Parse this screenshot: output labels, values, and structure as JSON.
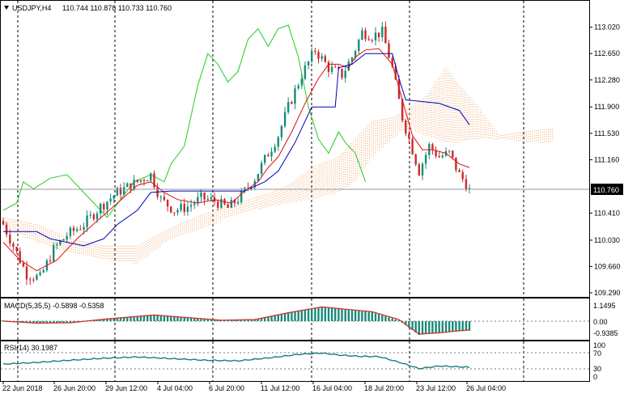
{
  "header": {
    "symbol": "USDJPY,H4",
    "ohlc": "110.744 110.878 110.733 110.760"
  },
  "current_price_label": "110.760",
  "macd": {
    "label": "MACD(5,35,5) -0.5898 -0.5358",
    "axis": [
      "1.1495",
      "0.00",
      "-0.9385"
    ]
  },
  "rsi": {
    "label": "RSI(14) 30.1987",
    "axis": [
      "100",
      "70",
      "30",
      "0"
    ]
  },
  "chart_data": {
    "type": "candlestick",
    "symbol": "USDJPY",
    "timeframe": "H4",
    "price_axis": {
      "ticks": [
        "113.020",
        "112.650",
        "112.280",
        "111.900",
        "111.530",
        "111.160",
        "110.760",
        "110.410",
        "110.030",
        "109.660",
        "109.290"
      ],
      "ylim": [
        109.29,
        113.3
      ]
    },
    "x_labels": [
      "22 Jun 2018",
      "26 Jun 20:00",
      "29 Jun 12:00",
      "4 Jul 04:00",
      "6 Jul 20:00",
      "11 Jul 12:00",
      "16 Jul 04:00",
      "18 Jul 20:00",
      "23 Jul 12:00",
      "26 Jul 04:00"
    ],
    "bar_count": 140,
    "close_path": [
      [
        0,
        110.25
      ],
      [
        3,
        109.95
      ],
      [
        7,
        109.55
      ],
      [
        11,
        109.5
      ],
      [
        15,
        109.9
      ],
      [
        19,
        110.1
      ],
      [
        24,
        110.25
      ],
      [
        29,
        110.5
      ],
      [
        34,
        110.7
      ],
      [
        40,
        110.85
      ],
      [
        44,
        110.95
      ],
      [
        47,
        110.6
      ],
      [
        51,
        110.45
      ],
      [
        55,
        110.5
      ],
      [
        59,
        110.62
      ],
      [
        63,
        110.58
      ],
      [
        67,
        110.48
      ],
      [
        71,
        110.65
      ],
      [
        75,
        110.9
      ],
      [
        79,
        111.25
      ],
      [
        82,
        111.5
      ],
      [
        85,
        111.9
      ],
      [
        89,
        112.35
      ],
      [
        93,
        112.7
      ],
      [
        97,
        112.45
      ],
      [
        101,
        112.35
      ],
      [
        104,
        112.6
      ],
      [
        107,
        112.95
      ],
      [
        110,
        112.9
      ],
      [
        113,
        112.95
      ],
      [
        116,
        112.45
      ],
      [
        119,
        111.75
      ],
      [
        122,
        111.3
      ],
      [
        124,
        111.0
      ],
      [
        127,
        111.35
      ],
      [
        130,
        111.2
      ],
      [
        133,
        111.25
      ],
      [
        136,
        110.95
      ],
      [
        139,
        110.76
      ]
    ],
    "senkou_a_path": [
      [
        0,
        110.35
      ],
      [
        10,
        110.25
      ],
      [
        20,
        110.05
      ],
      [
        30,
        109.95
      ],
      [
        40,
        109.95
      ],
      [
        50,
        110.2
      ],
      [
        60,
        110.4
      ],
      [
        70,
        110.55
      ],
      [
        80,
        110.7
      ],
      [
        85,
        110.8
      ],
      [
        92,
        111.05
      ],
      [
        100,
        111.2
      ],
      [
        105,
        111.45
      ],
      [
        110,
        111.7
      ],
      [
        116,
        111.75
      ],
      [
        120,
        111.85
      ],
      [
        126,
        112.05
      ],
      [
        132,
        112.45
      ],
      [
        136,
        112.2
      ],
      [
        140,
        112.0
      ],
      [
        148,
        111.5
      ],
      [
        155,
        111.55
      ],
      [
        164,
        111.6
      ]
    ],
    "senkou_b_path": [
      [
        0,
        110.2
      ],
      [
        10,
        110.0
      ],
      [
        20,
        109.85
      ],
      [
        30,
        109.75
      ],
      [
        40,
        109.7
      ],
      [
        50,
        110.05
      ],
      [
        60,
        110.2
      ],
      [
        70,
        110.4
      ],
      [
        80,
        110.5
      ],
      [
        85,
        110.55
      ],
      [
        92,
        110.6
      ],
      [
        100,
        110.7
      ],
      [
        105,
        110.85
      ],
      [
        110,
        111.2
      ],
      [
        116,
        111.45
      ],
      [
        120,
        111.6
      ],
      [
        126,
        111.5
      ],
      [
        132,
        111.4
      ],
      [
        136,
        111.4
      ],
      [
        140,
        111.45
      ],
      [
        148,
        111.45
      ],
      [
        155,
        111.4
      ],
      [
        164,
        111.4
      ]
    ],
    "tenkan_path": [
      [
        0,
        110.0
      ],
      [
        5,
        109.75
      ],
      [
        10,
        109.6
      ],
      [
        16,
        109.75
      ],
      [
        22,
        110.05
      ],
      [
        28,
        110.3
      ],
      [
        34,
        110.55
      ],
      [
        40,
        110.8
      ],
      [
        44,
        110.85
      ],
      [
        48,
        110.7
      ],
      [
        52,
        110.6
      ],
      [
        58,
        110.55
      ],
      [
        63,
        110.6
      ],
      [
        68,
        110.55
      ],
      [
        72,
        110.72
      ],
      [
        76,
        110.85
      ],
      [
        79,
        111.05
      ],
      [
        82,
        111.2
      ],
      [
        86,
        111.55
      ],
      [
        90,
        111.95
      ],
      [
        94,
        112.3
      ],
      [
        97,
        112.5
      ],
      [
        100,
        112.5
      ],
      [
        103,
        112.45
      ],
      [
        105,
        112.6
      ],
      [
        108,
        112.7
      ],
      [
        112,
        112.72
      ],
      [
        116,
        112.5
      ],
      [
        119,
        112.0
      ],
      [
        122,
        111.5
      ],
      [
        125,
        111.3
      ],
      [
        128,
        111.3
      ],
      [
        132,
        111.25
      ],
      [
        136,
        111.1
      ],
      [
        139,
        111.05
      ]
    ],
    "kijun_path": [
      [
        0,
        110.15
      ],
      [
        10,
        110.15
      ],
      [
        14,
        110.05
      ],
      [
        24,
        109.95
      ],
      [
        30,
        110.05
      ],
      [
        34,
        110.25
      ],
      [
        40,
        110.45
      ],
      [
        44,
        110.7
      ],
      [
        50,
        110.72
      ],
      [
        62,
        110.72
      ],
      [
        72,
        110.72
      ],
      [
        78,
        110.85
      ],
      [
        82,
        111.0
      ],
      [
        87,
        111.4
      ],
      [
        92,
        111.9
      ],
      [
        99,
        111.9
      ],
      [
        100,
        112.45
      ],
      [
        104,
        112.5
      ],
      [
        108,
        112.65
      ],
      [
        116,
        112.65
      ],
      [
        118,
        112.3
      ],
      [
        120,
        112.0
      ],
      [
        130,
        111.95
      ],
      [
        136,
        111.85
      ],
      [
        139,
        111.65
      ]
    ],
    "chikou_path": [
      [
        0,
        110.45
      ],
      [
        4,
        110.55
      ],
      [
        6,
        110.85
      ],
      [
        9,
        110.75
      ],
      [
        14,
        110.9
      ],
      [
        19,
        110.95
      ],
      [
        24,
        110.7
      ],
      [
        27,
        110.55
      ],
      [
        31,
        110.35
      ],
      [
        35,
        110.6
      ],
      [
        39,
        110.85
      ],
      [
        44,
        110.95
      ],
      [
        48,
        110.85
      ],
      [
        50,
        111.1
      ],
      [
        54,
        111.35
      ],
      [
        58,
        112.2
      ],
      [
        61,
        112.65
      ],
      [
        64,
        112.5
      ],
      [
        67,
        112.25
      ],
      [
        70,
        112.4
      ],
      [
        73,
        112.85
      ],
      [
        76,
        113.0
      ],
      [
        79,
        112.75
      ],
      [
        82,
        113.0
      ],
      [
        85,
        113.05
      ],
      [
        88,
        112.6
      ],
      [
        91,
        111.9
      ],
      [
        94,
        111.45
      ],
      [
        97,
        111.25
      ],
      [
        100,
        111.55
      ],
      [
        102,
        111.4
      ],
      [
        105,
        111.25
      ],
      [
        108,
        110.85
      ]
    ],
    "macd_hist": [
      [
        0,
        0.05
      ],
      [
        10,
        -0.15
      ],
      [
        20,
        -0.1
      ],
      [
        30,
        0.15
      ],
      [
        45,
        0.4
      ],
      [
        55,
        0.2
      ],
      [
        65,
        0.05
      ],
      [
        75,
        0.1
      ],
      [
        85,
        0.55
      ],
      [
        95,
        0.9
      ],
      [
        100,
        0.75
      ],
      [
        110,
        0.55
      ],
      [
        118,
        0.05
      ],
      [
        124,
        -0.85
      ],
      [
        130,
        -0.7
      ],
      [
        139,
        -0.59
      ]
    ],
    "macd_signal": [
      [
        0,
        0.0
      ],
      [
        10,
        -0.12
      ],
      [
        20,
        -0.1
      ],
      [
        30,
        0.12
      ],
      [
        45,
        0.38
      ],
      [
        55,
        0.22
      ],
      [
        65,
        0.06
      ],
      [
        75,
        0.1
      ],
      [
        85,
        0.52
      ],
      [
        95,
        0.88
      ],
      [
        100,
        0.78
      ],
      [
        110,
        0.58
      ],
      [
        118,
        0.1
      ],
      [
        124,
        -0.8
      ],
      [
        130,
        -0.72
      ],
      [
        139,
        -0.5358
      ]
    ],
    "rsi_values": [
      [
        0,
        40
      ],
      [
        10,
        45
      ],
      [
        20,
        52
      ],
      [
        30,
        58
      ],
      [
        40,
        62
      ],
      [
        50,
        57
      ],
      [
        60,
        52
      ],
      [
        70,
        50
      ],
      [
        80,
        60
      ],
      [
        88,
        70
      ],
      [
        95,
        74
      ],
      [
        100,
        68
      ],
      [
        106,
        64
      ],
      [
        112,
        63
      ],
      [
        118,
        46
      ],
      [
        124,
        26
      ],
      [
        130,
        34
      ],
      [
        139,
        30.2
      ]
    ],
    "rsi_levels": [
      70,
      30
    ]
  }
}
